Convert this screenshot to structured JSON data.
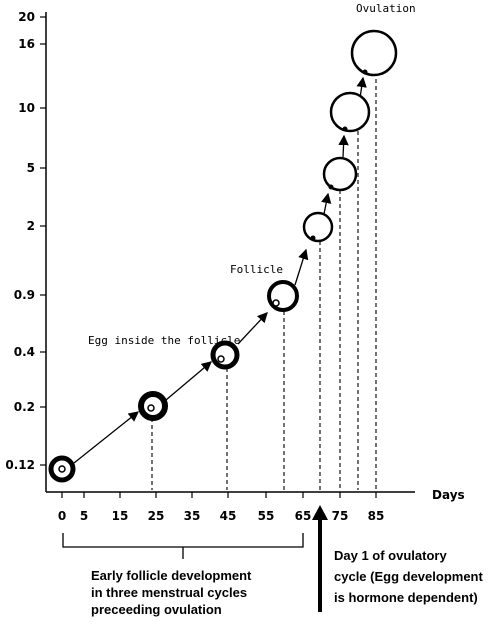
{
  "y_axis": {
    "ticks": [
      "20",
      "16",
      "10",
      "5",
      "2",
      "0.9",
      "0.4",
      "0.2",
      "0.12"
    ]
  },
  "x_axis": {
    "ticks": [
      "0",
      "5",
      "15",
      "25",
      "35",
      "45",
      "55",
      "65",
      "75",
      "85"
    ],
    "label": "Days"
  },
  "annotations": {
    "ovulation": "Ovulation",
    "follicle": "Follicle",
    "egg_inside": "Egg inside the follicle"
  },
  "captions": {
    "early_development": [
      "Early follicle development",
      "in three menstrual cycles",
      "preceeding ovulation"
    ],
    "day_one": [
      "Day 1 of ovulatory",
      "cycle (Egg development",
      "is hormone dependent)"
    ]
  },
  "stages": [
    {
      "day": 0,
      "size_mm": 0.12
    },
    {
      "day": 25,
      "size_mm": 0.2
    },
    {
      "day": 45,
      "size_mm": 0.4
    },
    {
      "day": 60,
      "size_mm": 0.9
    },
    {
      "day": 70,
      "size_mm": 2
    },
    {
      "day": 75,
      "size_mm": 5
    },
    {
      "day": 80,
      "size_mm": 10
    },
    {
      "day": 85,
      "size_mm": 16
    }
  ]
}
